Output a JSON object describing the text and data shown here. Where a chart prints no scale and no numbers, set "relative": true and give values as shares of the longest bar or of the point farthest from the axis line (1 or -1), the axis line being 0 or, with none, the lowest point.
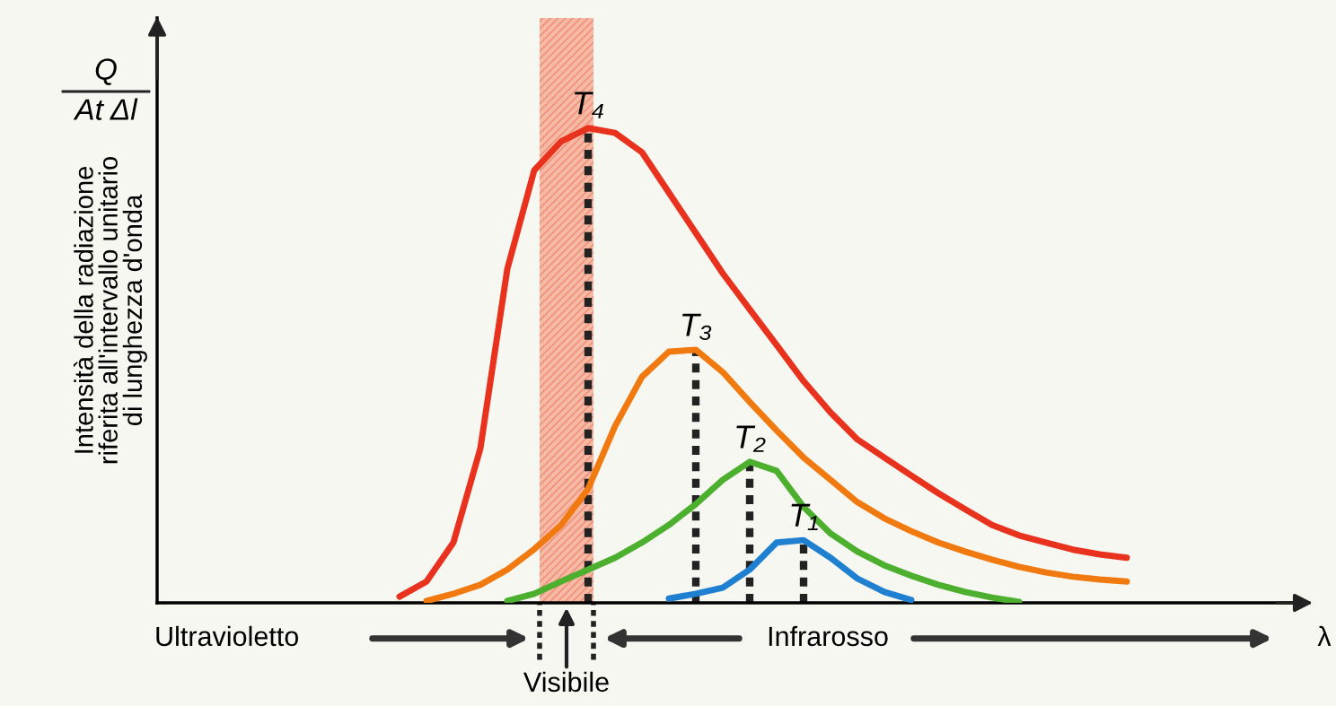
{
  "chart_data": {
    "type": "line",
    "relative": true,
    "ylabel": "Intensità della radiazione\nriferita all'intervallo unitario\ndi lunghezza d'onda",
    "categories": [
      null,
      null,
      null,
      null,
      null,
      null,
      null,
      null,
      null,
      null,
      null,
      null,
      null,
      null,
      null,
      null,
      null,
      null,
      null,
      null,
      null,
      null,
      null,
      null,
      null,
      null,
      null,
      null,
      null,
      null,
      null,
      null,
      null,
      null,
      null,
      null,
      null,
      null,
      null,
      null,
      null,
      null,
      null
    ],
    "series": [
      {
        "name": "T₄",
        "color": "#e8321e",
        "values": [
          null,
          null,
          null,
          null,
          null,
          null,
          null,
          null,
          null,
          0.013,
          0.045,
          0.127,
          0.325,
          0.703,
          0.911,
          0.972,
          1.0,
          0.99,
          0.949,
          0.864,
          0.779,
          0.694,
          0.618,
          0.543,
          0.467,
          0.401,
          0.344,
          0.306,
          0.268,
          0.231,
          0.197,
          0.164,
          0.142,
          0.127,
          0.112,
          0.102,
          0.095,
          null,
          null,
          null,
          null,
          null,
          null
        ]
      },
      {
        "name": "T₃",
        "color": "#f07a10",
        "values": [
          null,
          null,
          null,
          null,
          null,
          null,
          null,
          null,
          null,
          null,
          0.004,
          0.019,
          0.038,
          0.07,
          0.113,
          0.164,
          0.24,
          0.372,
          0.476,
          0.529,
          0.533,
          0.486,
          0.423,
          0.363,
          0.306,
          0.259,
          0.212,
          0.178,
          0.151,
          0.127,
          0.108,
          0.091,
          0.076,
          0.064,
          0.055,
          0.049,
          0.045,
          null,
          null,
          null,
          null,
          null,
          null
        ]
      },
      {
        "name": "T₂",
        "color": "#4caf2e",
        "values": [
          null,
          null,
          null,
          null,
          null,
          null,
          null,
          null,
          null,
          null,
          null,
          null,
          null,
          0.004,
          0.019,
          0.045,
          0.07,
          0.095,
          0.127,
          0.164,
          0.208,
          0.259,
          0.297,
          0.278,
          0.202,
          0.146,
          0.108,
          0.079,
          0.057,
          0.038,
          0.023,
          0.011,
          0.002,
          null,
          null,
          null,
          null,
          null,
          null,
          null,
          null,
          null,
          null
        ]
      },
      {
        "name": "T₁",
        "color": "#1f7fd0",
        "values": [
          null,
          null,
          null,
          null,
          null,
          null,
          null,
          null,
          null,
          null,
          null,
          null,
          null,
          null,
          null,
          null,
          null,
          null,
          null,
          0.009,
          0.019,
          0.032,
          0.07,
          0.127,
          0.132,
          0.095,
          0.051,
          0.023,
          0.006,
          null,
          null,
          null,
          null,
          null,
          null,
          null,
          null,
          null,
          null,
          null,
          null,
          null,
          null
        ]
      }
    ],
    "annotations": [
      "Q",
      "At Δl",
      "Ultravioletto",
      "Infrarosso",
      "λ",
      "Visibile"
    ],
    "grid": false,
    "legend": false
  }
}
